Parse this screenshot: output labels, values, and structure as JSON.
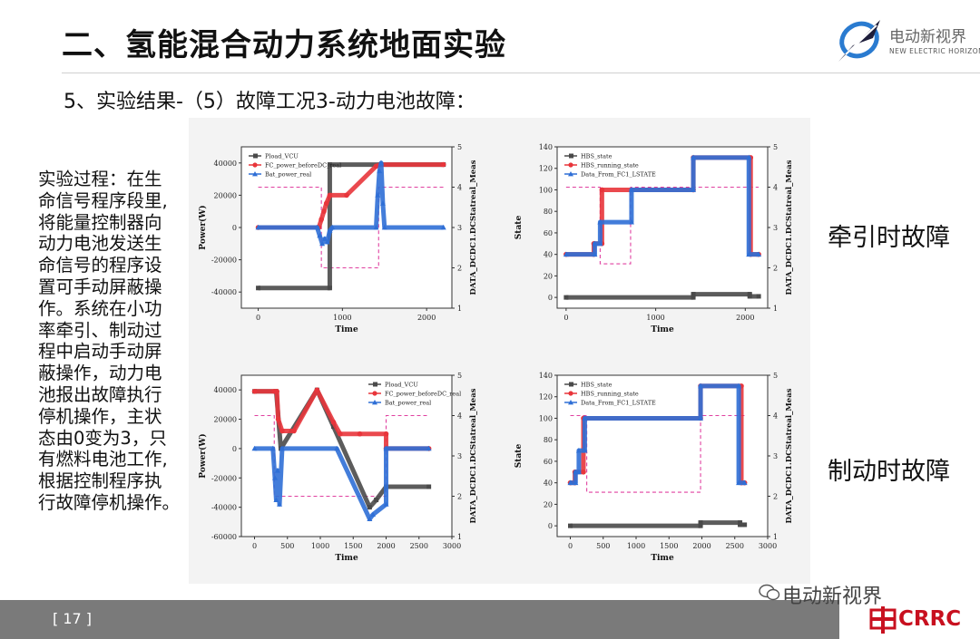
{
  "slide": {
    "title": "二、氢能混合动力系统地面实验",
    "subtitle": "5、实验结果-（5）故障工况3-动力电池故障：",
    "page_number": "[ 17 ]"
  },
  "logo": {
    "cn": "电动新视界",
    "en": "NEW ELECTRIC HORIZON",
    "icon": "swirl-globe-icon"
  },
  "watermark": {
    "text": "电动新视界",
    "icon": "wechat-icon"
  },
  "brand": {
    "text": "CRRC",
    "icon": "crrc-logo-icon",
    "color": "#c8101f"
  },
  "process_lines": [
    "实验过程：在生",
    "命信号程序段里,",
    "将能量控制器向",
    "动力电池发送生",
    "命信号的程序设",
    "置可手动屏蔽操",
    "作。系统在小功",
    "率牵引、制动过",
    "程中启动手动屏",
    "蔽操作，动力电",
    "池报出故障执行",
    "停机操作，主状",
    "态由0变为3，只",
    "有燃料电池工作,",
    "根据控制程序执",
    "行故障停机操作。"
  ],
  "fault_labels": {
    "traction": "牵引时故障",
    "braking": "制动时故障"
  },
  "colors": {
    "gray": "#4a4a4a",
    "red": "#e8353b",
    "blue": "#2f6fd6",
    "dash": "#e040a0"
  },
  "chart_data": [
    {
      "type": "line",
      "xlabel": "Time",
      "ylabel": "Power(W)",
      "y2label": "DATA_DCDC1.DCStatreal_Meas",
      "xlim": [
        -200,
        2300
      ],
      "ylim": [
        -50000,
        50000
      ],
      "y2lim": [
        1,
        5
      ],
      "xticks": [
        0,
        1000,
        2000
      ],
      "yticks": [
        -40000,
        -20000,
        0,
        20000,
        40000
      ],
      "y2ticks": [
        1,
        2,
        3,
        4,
        5
      ],
      "legend": "top-left",
      "series": [
        {
          "name": "Pload_VCU",
          "color": "gray",
          "marker": "square",
          "axis": "y",
          "x": [
            0,
            850,
            850,
            1450,
            2200
          ],
          "y": [
            -37500,
            -37500,
            39000,
            39000,
            39000
          ]
        },
        {
          "name": "FC_power_beforeDC_real",
          "color": "red",
          "marker": "circle",
          "axis": "y",
          "x": [
            0,
            700,
            720,
            750,
            780,
            810,
            850,
            1050,
            1400,
            1450,
            2200
          ],
          "y": [
            0,
            0,
            0,
            5000,
            10000,
            15000,
            20000,
            20000,
            38000,
            39000,
            39000
          ]
        },
        {
          "name": "Bat_power_real",
          "color": "blue",
          "marker": "triangle",
          "axis": "y",
          "x": [
            0,
            700,
            730,
            760,
            790,
            820,
            850,
            880,
            1400,
            1420,
            1440,
            1460,
            1480,
            1500,
            2200
          ],
          "y": [
            0,
            0,
            -5000,
            -10000,
            -7000,
            -9000,
            -2000,
            0,
            0,
            20000,
            35000,
            40000,
            15000,
            0,
            0
          ]
        }
      ],
      "step_series": {
        "axis": "y2",
        "color": "dash",
        "style": "dashed",
        "x": [
          0,
          750,
          750,
          1430,
          1430,
          2200
        ],
        "y": [
          4,
          4,
          2,
          2,
          4,
          4
        ]
      }
    },
    {
      "type": "line",
      "xlabel": "Time",
      "ylabel": "State",
      "y2label": "DATA_DCDC1.DCStatreal_Meas",
      "xlim": [
        -100,
        2250
      ],
      "ylim": [
        -10,
        140
      ],
      "y2lim": [
        1,
        5
      ],
      "xticks": [
        0,
        1000,
        2000
      ],
      "yticks": [
        0,
        20,
        40,
        60,
        80,
        100,
        120,
        140
      ],
      "y2ticks": [
        1,
        2,
        3,
        4,
        5
      ],
      "legend": "top-left",
      "series": [
        {
          "name": "HBS_state",
          "color": "gray",
          "marker": "square",
          "axis": "y",
          "x": [
            0,
            1420,
            1420,
            2050,
            2050,
            2150
          ],
          "y": [
            0,
            0,
            3,
            3,
            1,
            1
          ]
        },
        {
          "name": "HBS_running_state",
          "color": "red",
          "marker": "circle",
          "axis": "y",
          "x": [
            0,
            310,
            310,
            400,
            400,
            1420,
            1420,
            2060,
            2060,
            2150
          ],
          "y": [
            40,
            40,
            50,
            50,
            100,
            100,
            130,
            130,
            40,
            40
          ]
        },
        {
          "name": "Data_From_FC1_LSTATE",
          "color": "blue",
          "marker": "triangle",
          "axis": "y",
          "x": [
            0,
            320,
            320,
            380,
            380,
            730,
            730,
            1420,
            1420,
            2040,
            2040,
            2150
          ],
          "y": [
            40,
            40,
            50,
            50,
            70,
            70,
            100,
            100,
            130,
            130,
            40,
            40
          ]
        }
      ],
      "step_series": {
        "axis": "y2",
        "color": "dash",
        "style": "dashed",
        "x": [
          0,
          380,
          380,
          720,
          720,
          1420,
          1420,
          2150
        ],
        "y": [
          4,
          4,
          2.1,
          2.1,
          4,
          4,
          4,
          4
        ]
      }
    },
    {
      "type": "line",
      "xlabel": "Time",
      "ylabel": "Power(W)",
      "y2label": "DATA_DCDC1.DCStatreal_Meas",
      "xlim": [
        -200,
        3000
      ],
      "ylim": [
        -60000,
        50000
      ],
      "y2lim": [
        1,
        5
      ],
      "xticks": [
        0,
        500,
        1000,
        1500,
        2000,
        2500,
        3000
      ],
      "yticks": [
        -60000,
        -40000,
        -20000,
        0,
        20000,
        40000
      ],
      "y2ticks": [
        1,
        2,
        3,
        4,
        5
      ],
      "legend": "top-right",
      "series": [
        {
          "name": "Pload_VCU",
          "color": "gray",
          "marker": "square",
          "axis": "y",
          "x": [
            0,
            330,
            400,
            950,
            1200,
            1750,
            1850,
            2000,
            2650
          ],
          "y": [
            39000,
            39000,
            0,
            40000,
            15000,
            -40000,
            -35000,
            -26000,
            -26000
          ]
        },
        {
          "name": "FC_power_beforeDC_real",
          "color": "red",
          "marker": "circle",
          "axis": "y",
          "x": [
            0,
            300,
            340,
            360,
            420,
            600,
            950,
            1200,
            1300,
            1600,
            2000,
            2000,
            2650
          ],
          "y": [
            39000,
            39000,
            39000,
            20000,
            12000,
            12000,
            40000,
            18000,
            10000,
            10000,
            10000,
            0,
            0
          ]
        },
        {
          "name": "Bat_power_real",
          "color": "blue",
          "marker": "triangle",
          "axis": "y",
          "x": [
            0,
            280,
            310,
            330,
            350,
            380,
            420,
            1250,
            1750,
            1800,
            2000,
            2000,
            2650
          ],
          "y": [
            0,
            0,
            -20000,
            -35000,
            -15000,
            -38000,
            0,
            0,
            -48000,
            -45000,
            -38000,
            0,
            0
          ]
        }
      ],
      "step_series": {
        "axis": "y2",
        "color": "dash",
        "style": "dashed",
        "x": [
          0,
          300,
          300,
          2000,
          2000,
          2650
        ],
        "y": [
          4,
          4,
          2,
          2,
          4,
          4
        ]
      }
    },
    {
      "type": "line",
      "xlabel": "Time",
      "ylabel": "State",
      "y2label": "DATA_DCDC1.DCStatreal_Meas",
      "xlim": [
        -200,
        3000
      ],
      "ylim": [
        -10,
        140
      ],
      "y2lim": [
        1,
        5
      ],
      "xticks": [
        0,
        500,
        1000,
        1500,
        2000,
        2500,
        3000
      ],
      "yticks": [
        0,
        20,
        40,
        60,
        80,
        100,
        120,
        140
      ],
      "y2ticks": [
        1,
        2,
        3,
        4,
        5
      ],
      "legend": "top-left",
      "series": [
        {
          "name": "HBS_state",
          "color": "gray",
          "marker": "square",
          "axis": "y",
          "x": [
            0,
            1980,
            1980,
            2580,
            2580,
            2650
          ],
          "y": [
            0,
            0,
            3,
            3,
            1,
            1
          ]
        },
        {
          "name": "HBS_running_state",
          "color": "red",
          "marker": "circle",
          "axis": "y",
          "x": [
            0,
            70,
            70,
            200,
            200,
            1980,
            1980,
            2600,
            2600,
            2650
          ],
          "y": [
            40,
            40,
            50,
            50,
            100,
            100,
            130,
            130,
            40,
            40
          ]
        },
        {
          "name": "Data_From_FC1_LSTATE",
          "color": "blue",
          "marker": "triangle",
          "axis": "y",
          "x": [
            0,
            80,
            80,
            130,
            130,
            220,
            220,
            1980,
            1980,
            2560,
            2560,
            2650
          ],
          "y": [
            40,
            40,
            50,
            50,
            70,
            70,
            100,
            100,
            130,
            130,
            40,
            40
          ]
        }
      ],
      "step_series": {
        "axis": "y2",
        "color": "dash",
        "style": "dashed",
        "x": [
          0,
          250,
          250,
          1980,
          1980,
          2650
        ],
        "y": [
          4,
          4,
          2.1,
          2.1,
          4,
          4
        ]
      }
    }
  ]
}
